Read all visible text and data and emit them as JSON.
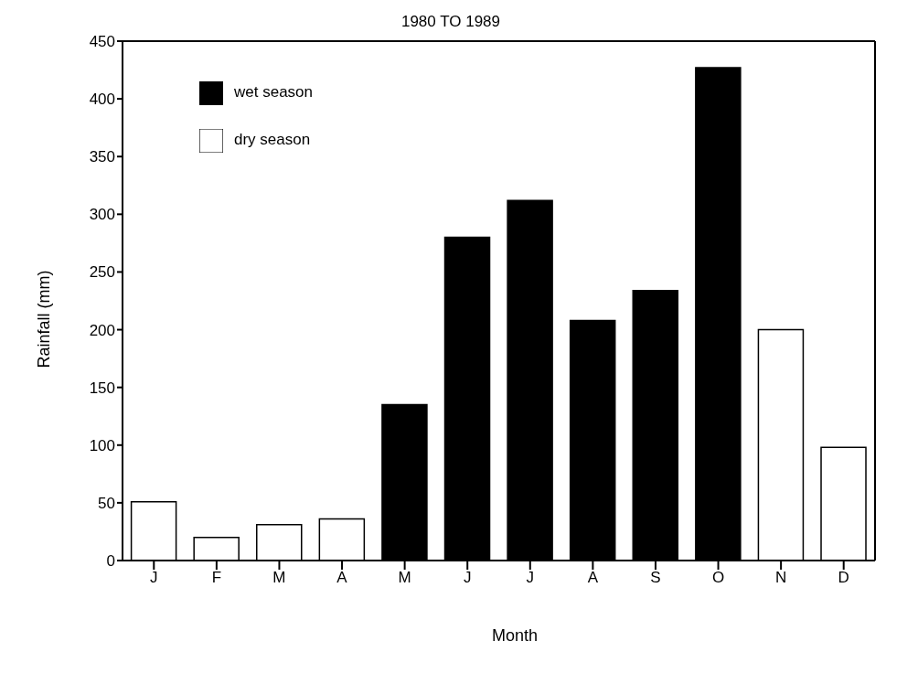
{
  "chart_data": {
    "type": "bar",
    "title": "1980 TO 1989",
    "xlabel": "Month",
    "ylabel": "Rainfall (mm)",
    "categories": [
      "J",
      "F",
      "M",
      "A",
      "M",
      "J",
      "J",
      "A",
      "S",
      "O",
      "N",
      "D"
    ],
    "series": [
      {
        "name": "wet season",
        "color": "#000000",
        "values": [
          null,
          null,
          null,
          null,
          135,
          280,
          312,
          208,
          234,
          427,
          null,
          null
        ]
      },
      {
        "name": "dry season",
        "color": "#ffffff",
        "values": [
          51,
          20,
          31,
          36,
          null,
          null,
          null,
          null,
          null,
          null,
          200,
          98
        ]
      }
    ],
    "stacked": true,
    "ylim": [
      0,
      450
    ],
    "yticks": [
      0,
      50,
      100,
      150,
      200,
      250,
      300,
      350,
      400,
      450
    ],
    "grid": false,
    "legend": "top left"
  }
}
